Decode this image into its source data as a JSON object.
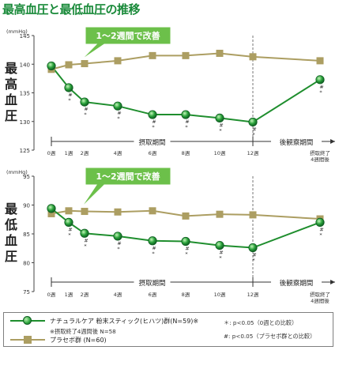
{
  "title": "最高血圧と最低血圧の推移",
  "colors": {
    "title": "#1a8a3a",
    "treatment": "#1f8e2e",
    "placebo": "#ac9e62",
    "callout": "#6cc04a",
    "callout_text": "#ffffff"
  },
  "chart_data": [
    {
      "type": "line",
      "ylabel": "最高血圧",
      "unit": "(mmHg)",
      "ylim": [
        125,
        145
      ],
      "yticks": [
        "125",
        "130",
        "135",
        "140",
        "145"
      ],
      "x": [
        0,
        1,
        2,
        4,
        6,
        8,
        10,
        12,
        16
      ],
      "series": [
        {
          "name": "ナチュラルケア 粉末スティック(ヒハツ)群(N=59)※",
          "marker": "circle",
          "values": [
            139.7,
            135.9,
            133.4,
            132.7,
            131.2,
            131.2,
            130.6,
            129.9,
            137.3
          ],
          "marks": [
            "",
            "#\n*",
            "#\n*",
            "#\n*",
            "#\n*",
            "#\n*",
            "#\n*",
            "#\n*",
            "#\n*"
          ]
        },
        {
          "name": "プラセボ群 (N=60)",
          "marker": "square",
          "values": [
            139.1,
            139.9,
            140.1,
            140.6,
            141.5,
            141.5,
            141.9,
            141.3,
            140.6
          ]
        }
      ],
      "callout": "1～2週間で改善"
    },
    {
      "type": "line",
      "ylabel": "最低血圧",
      "unit": "(mmHg)",
      "ylim": [
        75,
        95
      ],
      "yticks": [
        "75",
        "80",
        "85",
        "90",
        "95"
      ],
      "x": [
        0,
        1,
        2,
        4,
        6,
        8,
        10,
        12,
        16
      ],
      "series": [
        {
          "name": "ナチュラルケア 粉末スティック(ヒハツ)群(N=59)※",
          "marker": "circle",
          "values": [
            89.4,
            87.0,
            85.1,
            84.6,
            83.8,
            83.7,
            83.0,
            82.6,
            87.0
          ],
          "marks": [
            "",
            "#\n*",
            "#\n*",
            "#\n*",
            "#\n*",
            "#\n*",
            "#\n*",
            "#\n*",
            "#\n*"
          ]
        },
        {
          "name": "プラセボ群 (N=60)",
          "marker": "square",
          "values": [
            88.5,
            89.0,
            88.9,
            88.8,
            89.0,
            88.1,
            88.4,
            88.3,
            87.6
          ]
        }
      ],
      "callout": "1～2週間で改善"
    }
  ],
  "x_tick_labels": [
    "0週",
    "1週",
    "2週",
    "4週",
    "6週",
    "8週",
    "10週",
    "12週"
  ],
  "x_end_label": [
    "摂取終了",
    "4週間後"
  ],
  "periods": {
    "intake": "摂取期間",
    "observation": "後観察期間"
  },
  "legend": {
    "treatment_label": "ナチュラルケア 粉末スティック(ヒハツ)群(N=59)※",
    "treatment_note": "※摂取終了4週間後 N=58",
    "placebo_label": "プラセボ群 (N=60)",
    "note_star": "＊: p<0.05（0週との比較）",
    "note_hash": "#: p<0.05（プラセボ群との比較）"
  }
}
